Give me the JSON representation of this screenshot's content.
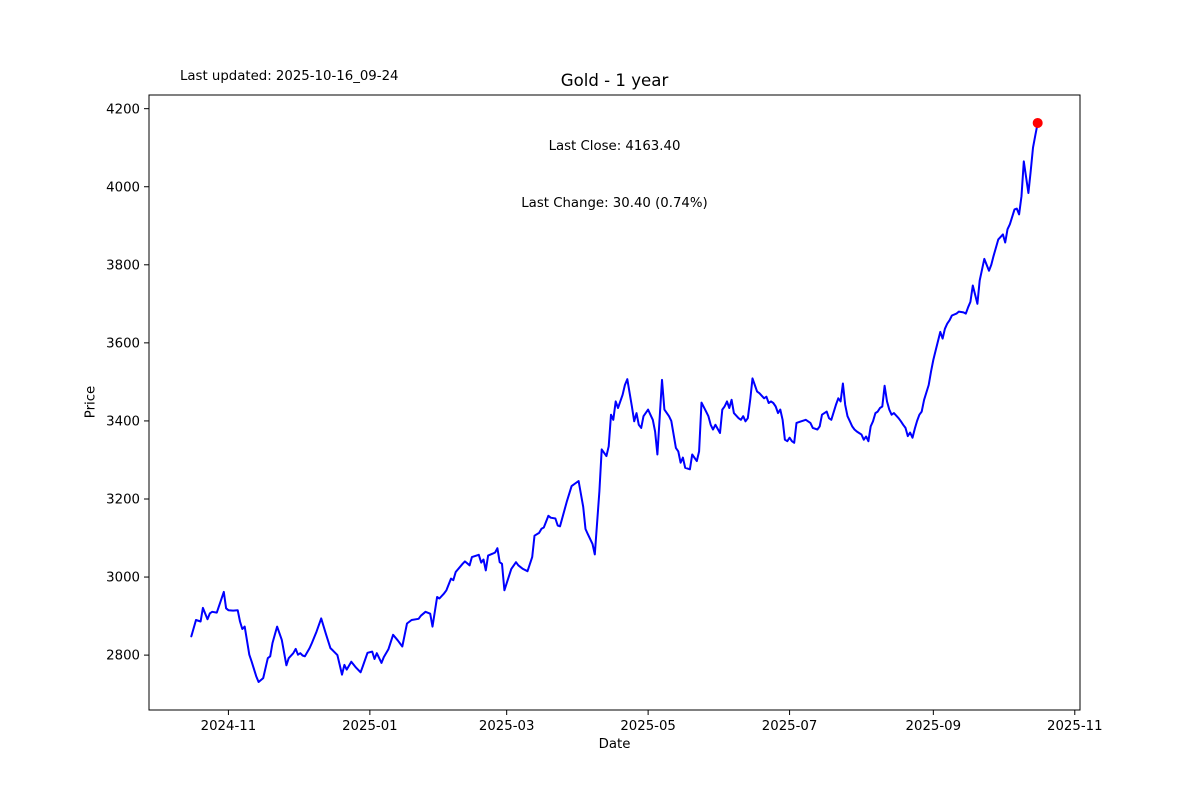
{
  "figure": {
    "title": "Gold - 1 year",
    "last_updated": "Last updated: 2025-10-16_09-24",
    "annotation_line1": "Last Close: 4163.40",
    "annotation_line2": "Last Change: 30.40 (0.74%)",
    "xlabel": "Date",
    "ylabel": "Price"
  },
  "colors": {
    "line": "#0000ff",
    "last_marker": "#ff0000",
    "axis": "#000000",
    "text": "#000000",
    "background": "#ffffff"
  },
  "chart_data": {
    "type": "line",
    "title": "Gold - 1 year",
    "xlabel": "Date",
    "ylabel": "Price",
    "grid": false,
    "legend": "none",
    "x_ticks": [
      {
        "value": "2024-11-01",
        "label": "2024-11"
      },
      {
        "value": "2025-01-01",
        "label": "2025-01"
      },
      {
        "value": "2025-03-01",
        "label": "2025-03"
      },
      {
        "value": "2025-05-01",
        "label": "2025-05"
      },
      {
        "value": "2025-07-01",
        "label": "2025-07"
      },
      {
        "value": "2025-09-01",
        "label": "2025-09"
      },
      {
        "value": "2025-11-01",
        "label": "2025-11"
      }
    ],
    "y_ticks": [
      2800,
      3000,
      3200,
      3400,
      3600,
      3800,
      4000,
      4200
    ],
    "x_range_days_margin": 0.05,
    "y_margin": 0.05,
    "last_close": 4163.4,
    "last_change": 30.4,
    "last_change_pct": 0.74,
    "series": [
      {
        "name": "Gold",
        "color": "#0000ff",
        "points": [
          [
            "2024-10-16",
            2848
          ],
          [
            "2024-10-18",
            2890
          ],
          [
            "2024-10-20",
            2886
          ],
          [
            "2024-10-21",
            2921
          ],
          [
            "2024-10-23",
            2892
          ],
          [
            "2024-10-24",
            2907
          ],
          [
            "2024-10-25",
            2911
          ],
          [
            "2024-10-27",
            2909
          ],
          [
            "2024-10-30",
            2962
          ],
          [
            "2024-10-31",
            2920
          ],
          [
            "2024-11-01",
            2915
          ],
          [
            "2024-11-03",
            2914
          ],
          [
            "2024-11-05",
            2915
          ],
          [
            "2024-11-06",
            2886
          ],
          [
            "2024-11-07",
            2867
          ],
          [
            "2024-11-08",
            2873
          ],
          [
            "2024-11-10",
            2801
          ],
          [
            "2024-11-11",
            2784
          ],
          [
            "2024-11-13",
            2746
          ],
          [
            "2024-11-14",
            2731
          ],
          [
            "2024-11-16",
            2741
          ],
          [
            "2024-11-18",
            2792
          ],
          [
            "2024-11-19",
            2797
          ],
          [
            "2024-11-20",
            2831
          ],
          [
            "2024-11-22",
            2873
          ],
          [
            "2024-11-24",
            2839
          ],
          [
            "2024-11-26",
            2774
          ],
          [
            "2024-11-27",
            2792
          ],
          [
            "2024-11-29",
            2805
          ],
          [
            "2024-11-30",
            2816
          ],
          [
            "2024-12-01",
            2801
          ],
          [
            "2024-12-02",
            2805
          ],
          [
            "2024-12-03",
            2799
          ],
          [
            "2024-12-04",
            2797
          ],
          [
            "2024-12-06",
            2818
          ],
          [
            "2024-12-07",
            2831
          ],
          [
            "2024-12-09",
            2860
          ],
          [
            "2024-12-11",
            2894
          ],
          [
            "2024-12-13",
            2855
          ],
          [
            "2024-12-15",
            2818
          ],
          [
            "2024-12-16",
            2812
          ],
          [
            "2024-12-18",
            2800
          ],
          [
            "2024-12-20",
            2750
          ],
          [
            "2024-12-21",
            2775
          ],
          [
            "2024-12-22",
            2763
          ],
          [
            "2024-12-24",
            2783
          ],
          [
            "2024-12-26",
            2768
          ],
          [
            "2024-12-28",
            2756
          ],
          [
            "2024-12-29",
            2772
          ],
          [
            "2024-12-31",
            2806
          ],
          [
            "2025-01-02",
            2809
          ],
          [
            "2025-01-03",
            2790
          ],
          [
            "2025-01-04",
            2805
          ],
          [
            "2025-01-06",
            2780
          ],
          [
            "2025-01-07",
            2795
          ],
          [
            "2025-01-09",
            2815
          ],
          [
            "2025-01-11",
            2852
          ],
          [
            "2025-01-13",
            2838
          ],
          [
            "2025-01-15",
            2822
          ],
          [
            "2025-01-17",
            2881
          ],
          [
            "2025-01-19",
            2890
          ],
          [
            "2025-01-22",
            2893
          ],
          [
            "2025-01-23",
            2901
          ],
          [
            "2025-01-25",
            2911
          ],
          [
            "2025-01-27",
            2906
          ],
          [
            "2025-01-28",
            2873
          ],
          [
            "2025-01-30",
            2949
          ],
          [
            "2025-01-31",
            2945
          ],
          [
            "2025-02-02",
            2958
          ],
          [
            "2025-02-03",
            2966
          ],
          [
            "2025-02-05",
            2996
          ],
          [
            "2025-02-06",
            2992
          ],
          [
            "2025-02-07",
            3013
          ],
          [
            "2025-02-10",
            3034
          ],
          [
            "2025-02-11",
            3040
          ],
          [
            "2025-02-13",
            3030
          ],
          [
            "2025-02-14",
            3051
          ],
          [
            "2025-02-17",
            3057
          ],
          [
            "2025-02-18",
            3037
          ],
          [
            "2025-02-19",
            3045
          ],
          [
            "2025-02-20",
            3017
          ],
          [
            "2025-02-21",
            3055
          ],
          [
            "2025-02-23",
            3060
          ],
          [
            "2025-02-24",
            3063
          ],
          [
            "2025-02-25",
            3074
          ],
          [
            "2025-02-26",
            3038
          ],
          [
            "2025-02-27",
            3034
          ],
          [
            "2025-02-28",
            2966
          ],
          [
            "2025-03-03",
            3021
          ],
          [
            "2025-03-05",
            3038
          ],
          [
            "2025-03-06",
            3030
          ],
          [
            "2025-03-08",
            3021
          ],
          [
            "2025-03-10",
            3015
          ],
          [
            "2025-03-12",
            3051
          ],
          [
            "2025-03-13",
            3106
          ],
          [
            "2025-03-15",
            3113
          ],
          [
            "2025-03-16",
            3124
          ],
          [
            "2025-03-17",
            3127
          ],
          [
            "2025-03-19",
            3157
          ],
          [
            "2025-03-20",
            3152
          ],
          [
            "2025-03-22",
            3150
          ],
          [
            "2025-03-23",
            3132
          ],
          [
            "2025-03-24",
            3130
          ],
          [
            "2025-03-27",
            3195
          ],
          [
            "2025-03-29",
            3233
          ],
          [
            "2025-04-01",
            3246
          ],
          [
            "2025-04-03",
            3180
          ],
          [
            "2025-04-04",
            3123
          ],
          [
            "2025-04-05",
            3110
          ],
          [
            "2025-04-07",
            3085
          ],
          [
            "2025-04-08",
            3058
          ],
          [
            "2025-04-10",
            3220
          ],
          [
            "2025-04-11",
            3327
          ],
          [
            "2025-04-13",
            3310
          ],
          [
            "2025-04-14",
            3335
          ],
          [
            "2025-04-15",
            3416
          ],
          [
            "2025-04-16",
            3403
          ],
          [
            "2025-04-17",
            3450
          ],
          [
            "2025-04-18",
            3433
          ],
          [
            "2025-04-20",
            3467
          ],
          [
            "2025-04-21",
            3492
          ],
          [
            "2025-04-22",
            3507
          ],
          [
            "2025-04-24",
            3437
          ],
          [
            "2025-04-25",
            3399
          ],
          [
            "2025-04-26",
            3420
          ],
          [
            "2025-04-27",
            3390
          ],
          [
            "2025-04-28",
            3382
          ],
          [
            "2025-04-29",
            3412
          ],
          [
            "2025-05-01",
            3429
          ],
          [
            "2025-05-02",
            3416
          ],
          [
            "2025-05-03",
            3403
          ],
          [
            "2025-05-04",
            3373
          ],
          [
            "2025-05-05",
            3314
          ],
          [
            "2025-05-07",
            3505
          ],
          [
            "2025-05-08",
            3429
          ],
          [
            "2025-05-10",
            3412
          ],
          [
            "2025-05-11",
            3400
          ],
          [
            "2025-05-13",
            3331
          ],
          [
            "2025-05-14",
            3322
          ],
          [
            "2025-05-15",
            3293
          ],
          [
            "2025-05-16",
            3306
          ],
          [
            "2025-05-17",
            3280
          ],
          [
            "2025-05-19",
            3276
          ],
          [
            "2025-05-20",
            3314
          ],
          [
            "2025-05-22",
            3297
          ],
          [
            "2025-05-23",
            3322
          ],
          [
            "2025-05-24",
            3447
          ],
          [
            "2025-05-26",
            3424
          ],
          [
            "2025-05-27",
            3412
          ],
          [
            "2025-05-28",
            3390
          ],
          [
            "2025-05-29",
            3378
          ],
          [
            "2025-05-30",
            3390
          ],
          [
            "2025-06-01",
            3369
          ],
          [
            "2025-06-02",
            3429
          ],
          [
            "2025-06-03",
            3437
          ],
          [
            "2025-06-04",
            3450
          ],
          [
            "2025-06-05",
            3433
          ],
          [
            "2025-06-06",
            3454
          ],
          [
            "2025-06-07",
            3420
          ],
          [
            "2025-06-09",
            3407
          ],
          [
            "2025-06-10",
            3403
          ],
          [
            "2025-06-11",
            3412
          ],
          [
            "2025-06-12",
            3399
          ],
          [
            "2025-06-13",
            3407
          ],
          [
            "2025-06-14",
            3454
          ],
          [
            "2025-06-15",
            3509
          ],
          [
            "2025-06-16",
            3492
          ],
          [
            "2025-06-17",
            3475
          ],
          [
            "2025-06-18",
            3471
          ],
          [
            "2025-06-20",
            3458
          ],
          [
            "2025-06-21",
            3462
          ],
          [
            "2025-06-22",
            3446
          ],
          [
            "2025-06-23",
            3450
          ],
          [
            "2025-06-24",
            3446
          ],
          [
            "2025-06-25",
            3437
          ],
          [
            "2025-06-26",
            3420
          ],
          [
            "2025-06-27",
            3429
          ],
          [
            "2025-06-28",
            3403
          ],
          [
            "2025-06-29",
            3352
          ],
          [
            "2025-06-30",
            3348
          ],
          [
            "2025-07-01",
            3357
          ],
          [
            "2025-07-02",
            3348
          ],
          [
            "2025-07-03",
            3344
          ],
          [
            "2025-07-04",
            3395
          ],
          [
            "2025-07-06",
            3399
          ],
          [
            "2025-07-08",
            3403
          ],
          [
            "2025-07-10",
            3395
          ],
          [
            "2025-07-11",
            3382
          ],
          [
            "2025-07-13",
            3378
          ],
          [
            "2025-07-14",
            3386
          ],
          [
            "2025-07-15",
            3416
          ],
          [
            "2025-07-17",
            3424
          ],
          [
            "2025-07-18",
            3407
          ],
          [
            "2025-07-19",
            3403
          ],
          [
            "2025-07-21",
            3441
          ],
          [
            "2025-07-22",
            3458
          ],
          [
            "2025-07-23",
            3450
          ],
          [
            "2025-07-24",
            3496
          ],
          [
            "2025-07-25",
            3441
          ],
          [
            "2025-07-26",
            3412
          ],
          [
            "2025-07-27",
            3399
          ],
          [
            "2025-07-28",
            3386
          ],
          [
            "2025-07-29",
            3378
          ],
          [
            "2025-07-30",
            3373
          ],
          [
            "2025-07-31",
            3369
          ],
          [
            "2025-08-01",
            3365
          ],
          [
            "2025-08-02",
            3352
          ],
          [
            "2025-08-03",
            3360
          ],
          [
            "2025-08-04",
            3348
          ],
          [
            "2025-08-05",
            3386
          ],
          [
            "2025-08-06",
            3399
          ],
          [
            "2025-08-07",
            3420
          ],
          [
            "2025-08-08",
            3424
          ],
          [
            "2025-08-09",
            3433
          ],
          [
            "2025-08-10",
            3437
          ],
          [
            "2025-08-11",
            3490
          ],
          [
            "2025-08-12",
            3450
          ],
          [
            "2025-08-13",
            3429
          ],
          [
            "2025-08-14",
            3416
          ],
          [
            "2025-08-15",
            3420
          ],
          [
            "2025-08-17",
            3407
          ],
          [
            "2025-08-18",
            3399
          ],
          [
            "2025-08-19",
            3390
          ],
          [
            "2025-08-20",
            3382
          ],
          [
            "2025-08-21",
            3361
          ],
          [
            "2025-08-22",
            3370
          ],
          [
            "2025-08-23",
            3357
          ],
          [
            "2025-08-24",
            3380
          ],
          [
            "2025-08-25",
            3400
          ],
          [
            "2025-08-26",
            3416
          ],
          [
            "2025-08-27",
            3424
          ],
          [
            "2025-08-28",
            3454
          ],
          [
            "2025-08-30",
            3492
          ],
          [
            "2025-08-31",
            3526
          ],
          [
            "2025-09-01",
            3556
          ],
          [
            "2025-09-02",
            3581
          ],
          [
            "2025-09-04",
            3628
          ],
          [
            "2025-09-05",
            3611
          ],
          [
            "2025-09-06",
            3636
          ],
          [
            "2025-09-07",
            3649
          ],
          [
            "2025-09-08",
            3658
          ],
          [
            "2025-09-09",
            3670
          ],
          [
            "2025-09-11",
            3675
          ],
          [
            "2025-09-12",
            3680
          ],
          [
            "2025-09-14",
            3678
          ],
          [
            "2025-09-15",
            3675
          ],
          [
            "2025-09-16",
            3691
          ],
          [
            "2025-09-17",
            3705
          ],
          [
            "2025-09-18",
            3747
          ],
          [
            "2025-09-20",
            3700
          ],
          [
            "2025-09-21",
            3760
          ],
          [
            "2025-09-23",
            3815
          ],
          [
            "2025-09-25",
            3785
          ],
          [
            "2025-09-26",
            3800
          ],
          [
            "2025-09-27",
            3823
          ],
          [
            "2025-09-29",
            3865
          ],
          [
            "2025-10-01",
            3878
          ],
          [
            "2025-10-02",
            3857
          ],
          [
            "2025-10-03",
            3891
          ],
          [
            "2025-10-04",
            3904
          ],
          [
            "2025-10-06",
            3942
          ],
          [
            "2025-10-07",
            3944
          ],
          [
            "2025-10-08",
            3929
          ],
          [
            "2025-10-09",
            3976
          ],
          [
            "2025-10-10",
            4065
          ],
          [
            "2025-10-12",
            3984
          ],
          [
            "2025-10-13",
            4040
          ],
          [
            "2025-10-14",
            4100
          ],
          [
            "2025-10-15",
            4133
          ],
          [
            "2025-10-16",
            4163.4
          ]
        ]
      }
    ],
    "last_marker": {
      "date": "2025-10-16",
      "price": 4163.4,
      "color": "#ff0000"
    }
  }
}
